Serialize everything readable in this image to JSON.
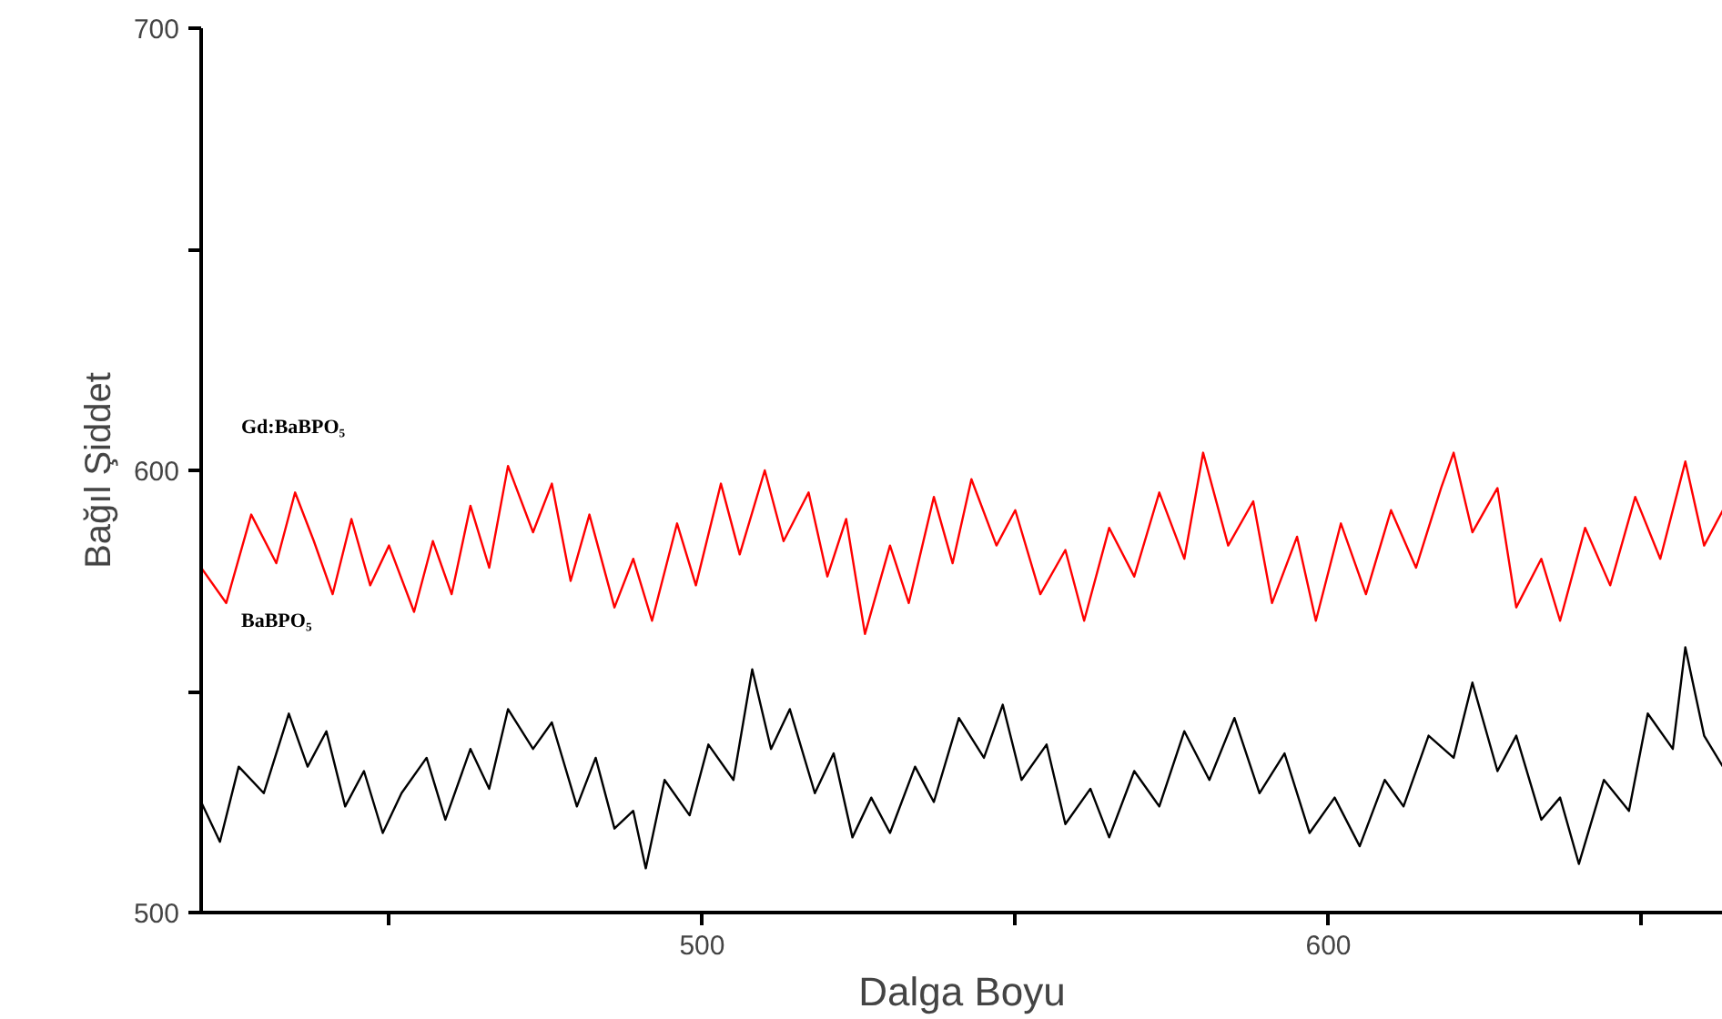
{
  "chart_data": {
    "type": "line",
    "xlabel": "Dalga Boyu",
    "ylabel": "Bağıl Şiddet",
    "xlim": [
      420,
      663
    ],
    "ylim": [
      500,
      700
    ],
    "xticks": [
      {
        "value": 450,
        "label": null
      },
      500,
      {
        "value": 550,
        "label": null
      },
      600,
      {
        "value": 650,
        "label": null
      }
    ],
    "yticks": [
      500,
      {
        "value": 550,
        "label": null
      },
      600,
      {
        "value": 650,
        "label": null
      },
      700
    ],
    "grid": false,
    "marker": "none",
    "line_style": "solid",
    "annotations": [
      "Gd:BaBPO₅",
      "BaBPO₅"
    ],
    "series": [
      {
        "color": "#ff0000",
        "x": [
          420,
          424,
          428,
          432,
          435,
          438,
          441,
          444,
          447,
          450,
          454,
          457,
          460,
          463,
          466,
          469,
          473,
          476,
          479,
          482,
          486,
          489,
          492,
          496,
          499,
          503,
          506,
          510,
          513,
          517,
          520,
          523,
          526,
          530,
          533,
          537,
          540,
          543,
          547,
          550,
          554,
          558,
          561,
          565,
          569,
          573,
          577,
          580,
          584,
          588,
          591,
          595,
          598,
          602,
          606,
          610,
          614,
          618,
          620,
          623,
          627,
          630,
          634,
          637,
          641,
          645,
          649,
          653,
          657,
          660,
          663
        ],
        "values": [
          578,
          570,
          590,
          579,
          595,
          584,
          572,
          589,
          574,
          583,
          568,
          584,
          572,
          592,
          578,
          601,
          586,
          597,
          575,
          590,
          569,
          580,
          566,
          588,
          574,
          597,
          581,
          600,
          584,
          595,
          576,
          589,
          563,
          583,
          570,
          594,
          579,
          598,
          583,
          591,
          572,
          582,
          566,
          587,
          576,
          595,
          580,
          604,
          583,
          593,
          570,
          585,
          566,
          588,
          572,
          591,
          578,
          596,
          604,
          586,
          596,
          569,
          580,
          566,
          587,
          574,
          594,
          580,
          602,
          583,
          591
        ]
      },
      {
        "color": "#000000",
        "x": [
          420,
          423,
          426,
          430,
          434,
          437,
          440,
          443,
          446,
          449,
          452,
          456,
          459,
          463,
          466,
          469,
          473,
          476,
          480,
          483,
          486,
          489,
          491,
          494,
          498,
          501,
          505,
          508,
          511,
          514,
          518,
          521,
          524,
          527,
          530,
          534,
          537,
          541,
          545,
          548,
          551,
          555,
          558,
          562,
          565,
          569,
          573,
          577,
          581,
          585,
          589,
          593,
          597,
          601,
          605,
          609,
          612,
          616,
          620,
          623,
          627,
          630,
          634,
          637,
          640,
          644,
          648,
          651,
          655,
          657,
          660,
          663
        ],
        "values": [
          525,
          516,
          533,
          527,
          545,
          533,
          541,
          524,
          532,
          518,
          527,
          535,
          521,
          537,
          528,
          546,
          537,
          543,
          524,
          535,
          519,
          523,
          510,
          530,
          522,
          538,
          530,
          555,
          537,
          546,
          527,
          536,
          517,
          526,
          518,
          533,
          525,
          544,
          535,
          547,
          530,
          538,
          520,
          528,
          517,
          532,
          524,
          541,
          530,
          544,
          527,
          536,
          518,
          526,
          515,
          530,
          524,
          540,
          535,
          552,
          532,
          540,
          521,
          526,
          511,
          530,
          523,
          545,
          537,
          560,
          540,
          533
        ]
      }
    ]
  }
}
